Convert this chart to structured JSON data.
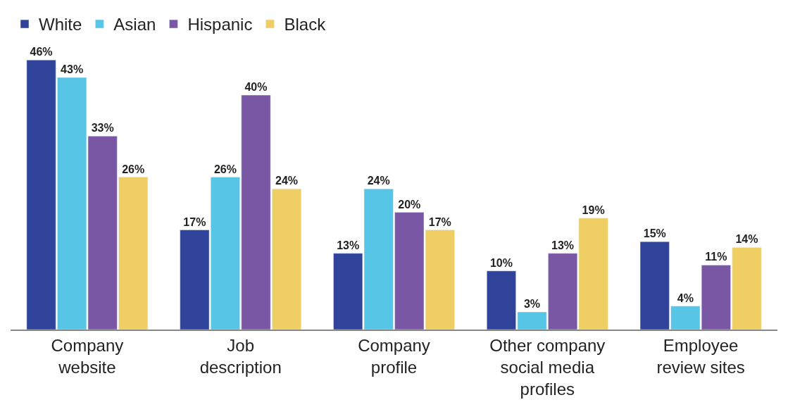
{
  "chart_data": {
    "type": "bar",
    "categories": [
      "Company\nwebsite",
      "Job\ndescription",
      "Company\nprofile",
      "Other company\nsocial media\nprofiles",
      "Employee\nreview sites"
    ],
    "series": [
      {
        "name": "White",
        "color": "#2e4399",
        "values": [
          46,
          17,
          13,
          10,
          15
        ],
        "value_labels": [
          "46%",
          "17%",
          "13%",
          "10%",
          "15%"
        ]
      },
      {
        "name": "Asian",
        "color": "#56c5e6",
        "values": [
          43,
          26,
          24,
          3,
          4
        ],
        "value_labels": [
          "43%",
          "26%",
          "24%",
          "3%",
          "4%"
        ]
      },
      {
        "name": "Hispanic",
        "color": "#7a57a5",
        "values": [
          33,
          40,
          20,
          13,
          11
        ],
        "value_labels": [
          "33%",
          "40%",
          "20%",
          "13%",
          "11%"
        ]
      },
      {
        "name": "Black",
        "color": "#efcf63",
        "values": [
          26,
          24,
          17,
          19,
          14
        ],
        "value_labels": [
          "26%",
          "24%",
          "17%",
          "19%",
          "14%"
        ]
      }
    ],
    "legend": "top left",
    "tick_labels": "x"
  }
}
